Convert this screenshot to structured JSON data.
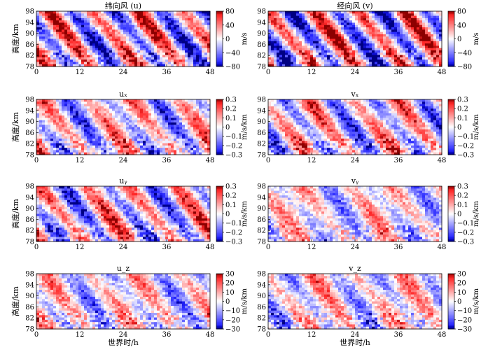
{
  "chart_data": [
    {
      "type": "heatmap",
      "id": "u",
      "title": "纬向风 (u)",
      "ylabel": "高度/km",
      "xlabel": "",
      "cbar_label": "m/s",
      "cbar_ticks": [
        "80",
        "40",
        "0",
        "−40",
        "−80"
      ],
      "x_ticks": [
        "0",
        "12",
        "24",
        "36",
        "48"
      ],
      "y_ticks": [
        "98",
        "94",
        "90",
        "86",
        "82",
        "78"
      ],
      "xlim": [
        0,
        48
      ],
      "ylim": [
        78,
        98
      ],
      "clim": [
        -80,
        80
      ],
      "phase": 0.0,
      "amp": 0.85
    },
    {
      "type": "heatmap",
      "id": "v",
      "title": "经向风 (v)",
      "ylabel": "",
      "xlabel": "",
      "cbar_label": "m/s",
      "cbar_ticks": [
        "80",
        "40",
        "0",
        "−40",
        "−80"
      ],
      "x_ticks": [
        "0",
        "12",
        "24",
        "36",
        "48"
      ],
      "y_ticks": [
        "98",
        "94",
        "90",
        "86",
        "82",
        "78"
      ],
      "xlim": [
        0,
        48
      ],
      "ylim": [
        78,
        98
      ],
      "clim": [
        -80,
        80
      ],
      "phase": 1.6,
      "amp": 0.9
    },
    {
      "type": "heatmap",
      "id": "ux",
      "title": "uₓ",
      "ylabel": "高度/km",
      "xlabel": "",
      "cbar_label": "m/s/km",
      "cbar_ticks": [
        "0.3",
        "0.2",
        "0.1",
        "0",
        "−0.1",
        "−0.2",
        "−0.3"
      ],
      "x_ticks": [
        "0",
        "12",
        "24",
        "36",
        "48"
      ],
      "y_ticks": [
        "98",
        "94",
        "90",
        "86",
        "82",
        "78"
      ],
      "xlim": [
        0,
        48
      ],
      "ylim": [
        78,
        98
      ],
      "clim": [
        -0.3,
        0.3
      ],
      "phase": 0.8,
      "amp": 0.6
    },
    {
      "type": "heatmap",
      "id": "vx",
      "title": "vₓ",
      "ylabel": "",
      "xlabel": "",
      "cbar_label": "m/s/km",
      "cbar_ticks": [
        "0.3",
        "0.2",
        "0.1",
        "0",
        "−0.1",
        "−0.2",
        "−0.3"
      ],
      "x_ticks": [
        "0",
        "12",
        "24",
        "36",
        "48"
      ],
      "y_ticks": [
        "98",
        "94",
        "90",
        "86",
        "82",
        "78"
      ],
      "xlim": [
        0,
        48
      ],
      "ylim": [
        78,
        98
      ],
      "clim": [
        -0.3,
        0.3
      ],
      "phase": 2.4,
      "amp": 0.65
    },
    {
      "type": "heatmap",
      "id": "uy",
      "title": "uᵧ",
      "ylabel": "高度/km",
      "xlabel": "",
      "cbar_label": "m/s/km",
      "cbar_ticks": [
        "0.3",
        "0.2",
        "0.1",
        "0",
        "−0.1",
        "−0.2",
        "−0.3"
      ],
      "x_ticks": [
        "0",
        "12",
        "24",
        "36",
        "48"
      ],
      "y_ticks": [
        "98",
        "94",
        "90",
        "86",
        "82",
        "78"
      ],
      "xlim": [
        0,
        48
      ],
      "ylim": [
        78,
        98
      ],
      "clim": [
        -0.3,
        0.3
      ],
      "phase": 1.1,
      "amp": 0.7
    },
    {
      "type": "heatmap",
      "id": "vy",
      "title": "vᵧ",
      "ylabel": "",
      "xlabel": "",
      "cbar_label": "m/s/km",
      "cbar_ticks": [
        "0.3",
        "0.2",
        "0.1",
        "0",
        "−0.1",
        "−0.2",
        "−0.3"
      ],
      "x_ticks": [
        "0",
        "12",
        "24",
        "36",
        "48"
      ],
      "y_ticks": [
        "98",
        "94",
        "90",
        "86",
        "82",
        "78"
      ],
      "xlim": [
        0,
        48
      ],
      "ylim": [
        78,
        98
      ],
      "clim": [
        -0.3,
        0.3
      ],
      "phase": 3.0,
      "amp": 0.4
    },
    {
      "type": "heatmap",
      "id": "uz",
      "title": "u_z",
      "ylabel": "高度/km",
      "xlabel": "世界时/h",
      "cbar_label": "m/s/km",
      "cbar_ticks": [
        "30",
        "20",
        "10",
        "0",
        "−10",
        "−20",
        "−30"
      ],
      "x_ticks": [
        "0",
        "12",
        "24",
        "36",
        "48"
      ],
      "y_ticks": [
        "98",
        "94",
        "90",
        "86",
        "82",
        "78"
      ],
      "xlim": [
        0,
        48
      ],
      "ylim": [
        78,
        98
      ],
      "clim": [
        -30,
        30
      ],
      "phase": 0.4,
      "amp": 0.45
    },
    {
      "type": "heatmap",
      "id": "vz",
      "title": "v_z",
      "ylabel": "",
      "xlabel": "世界时/h",
      "cbar_label": "m/s/km",
      "cbar_ticks": [
        "30",
        "20",
        "10",
        "0",
        "−10",
        "−20",
        "−30"
      ],
      "x_ticks": [
        "0",
        "12",
        "24",
        "36",
        "48"
      ],
      "y_ticks": [
        "98",
        "94",
        "90",
        "86",
        "82",
        "78"
      ],
      "xlim": [
        0,
        48
      ],
      "ylim": [
        78,
        98
      ],
      "clim": [
        -30,
        30
      ],
      "phase": 2.0,
      "amp": 0.45
    }
  ]
}
